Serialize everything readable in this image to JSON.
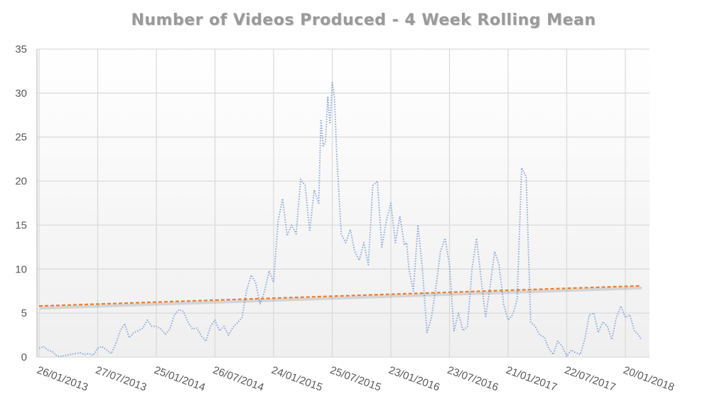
{
  "chart_data": {
    "type": "line",
    "title": "Number of Videos Produced - 4 Week Rolling Mean",
    "xlabel": "",
    "ylabel": "",
    "ylim": [
      0,
      35
    ],
    "yticks": [
      0,
      5,
      10,
      15,
      20,
      25,
      30,
      35
    ],
    "xlim": [
      "2013-01-26",
      "2018-01-20"
    ],
    "xtick_labels": [
      "26/01/2013",
      "27/07/2013",
      "25/01/2014",
      "26/07/2014",
      "24/01/2015",
      "25/07/2015",
      "23/01/2016",
      "23/07/2016",
      "21/01/2017",
      "22/07/2017",
      "20/01/2018"
    ],
    "xtick_dates": [
      "2013-01-26",
      "2013-07-27",
      "2014-01-25",
      "2014-07-26",
      "2015-01-24",
      "2015-07-25",
      "2016-01-23",
      "2016-07-23",
      "2017-01-21",
      "2017-07-22",
      "2018-01-20"
    ],
    "grid": true,
    "legend": "none",
    "series": [
      {
        "color": "#8EA9DB",
        "line_style": "dotted",
        "points": [
          [
            "2013-01-26",
            1.0
          ],
          [
            "2013-02-09",
            1.2
          ],
          [
            "2013-02-23",
            0.8
          ],
          [
            "2013-03-09",
            0.6
          ],
          [
            "2013-03-23",
            0.1
          ],
          [
            "2013-04-06",
            0.1
          ],
          [
            "2013-04-20",
            0.2
          ],
          [
            "2013-05-04",
            0.3
          ],
          [
            "2013-05-18",
            0.4
          ],
          [
            "2013-06-01",
            0.5
          ],
          [
            "2013-06-15",
            0.3
          ],
          [
            "2013-06-29",
            0.4
          ],
          [
            "2013-07-13",
            0.2
          ],
          [
            "2013-07-27",
            1.0
          ],
          [
            "2013-08-10",
            1.2
          ],
          [
            "2013-08-24",
            0.8
          ],
          [
            "2013-09-07",
            0.4
          ],
          [
            "2013-09-21",
            1.5
          ],
          [
            "2013-10-05",
            3.0
          ],
          [
            "2013-10-19",
            3.8
          ],
          [
            "2013-11-02",
            2.2
          ],
          [
            "2013-11-16",
            2.8
          ],
          [
            "2013-11-30",
            3.0
          ],
          [
            "2013-12-14",
            3.3
          ],
          [
            "2013-12-28",
            4.2
          ],
          [
            "2014-01-11",
            3.5
          ],
          [
            "2014-01-25",
            3.5
          ],
          [
            "2014-02-08",
            3.2
          ],
          [
            "2014-02-22",
            2.6
          ],
          [
            "2014-03-08",
            3.2
          ],
          [
            "2014-03-22",
            4.8
          ],
          [
            "2014-04-05",
            5.4
          ],
          [
            "2014-04-19",
            5.2
          ],
          [
            "2014-05-03",
            4.0
          ],
          [
            "2014-05-17",
            3.2
          ],
          [
            "2014-05-31",
            3.3
          ],
          [
            "2014-06-14",
            2.4
          ],
          [
            "2014-06-28",
            1.8
          ],
          [
            "2014-07-12",
            3.5
          ],
          [
            "2014-07-26",
            4.2
          ],
          [
            "2014-08-09",
            3.0
          ],
          [
            "2014-08-23",
            3.5
          ],
          [
            "2014-09-06",
            2.5
          ],
          [
            "2014-09-20",
            3.4
          ],
          [
            "2014-10-04",
            3.9
          ],
          [
            "2014-10-18",
            4.5
          ],
          [
            "2014-11-01",
            7.5
          ],
          [
            "2014-11-15",
            9.3
          ],
          [
            "2014-11-29",
            8.5
          ],
          [
            "2014-12-13",
            6.0
          ],
          [
            "2014-12-27",
            7.5
          ],
          [
            "2015-01-10",
            9.8
          ],
          [
            "2015-01-24",
            8.5
          ],
          [
            "2015-02-07",
            15.5
          ],
          [
            "2015-02-21",
            18.0
          ],
          [
            "2015-03-07",
            13.8
          ],
          [
            "2015-03-21",
            15.0
          ],
          [
            "2015-04-04",
            14.0
          ],
          [
            "2015-04-18",
            20.2
          ],
          [
            "2015-05-02",
            19.5
          ],
          [
            "2015-05-16",
            14.3
          ],
          [
            "2015-05-30",
            19.0
          ],
          [
            "2015-06-13",
            17.5
          ],
          [
            "2015-06-20",
            27.0
          ],
          [
            "2015-06-27",
            24.0
          ],
          [
            "2015-07-04",
            24.5
          ],
          [
            "2015-07-11",
            29.5
          ],
          [
            "2015-07-18",
            26.5
          ],
          [
            "2015-07-25",
            31.2
          ],
          [
            "2015-08-01",
            29.5
          ],
          [
            "2015-08-08",
            23.0
          ],
          [
            "2015-08-22",
            14.0
          ],
          [
            "2015-09-05",
            13.0
          ],
          [
            "2015-09-19",
            14.5
          ],
          [
            "2015-10-03",
            12.0
          ],
          [
            "2015-10-17",
            11.0
          ],
          [
            "2015-10-31",
            13.0
          ],
          [
            "2015-11-14",
            10.5
          ],
          [
            "2015-11-28",
            19.5
          ],
          [
            "2015-12-12",
            20.0
          ],
          [
            "2015-12-26",
            12.5
          ],
          [
            "2016-01-09",
            15.5
          ],
          [
            "2016-01-23",
            17.5
          ],
          [
            "2016-02-06",
            13.0
          ],
          [
            "2016-02-20",
            16.0
          ],
          [
            "2016-03-05",
            12.8
          ],
          [
            "2016-03-12",
            13.0
          ],
          [
            "2016-03-19",
            10.0
          ],
          [
            "2016-04-02",
            7.5
          ],
          [
            "2016-04-16",
            15.0
          ],
          [
            "2016-04-30",
            10.0
          ],
          [
            "2016-05-14",
            2.8
          ],
          [
            "2016-05-28",
            4.5
          ],
          [
            "2016-06-11",
            8.0
          ],
          [
            "2016-06-25",
            12.0
          ],
          [
            "2016-07-09",
            13.5
          ],
          [
            "2016-07-23",
            10.5
          ],
          [
            "2016-08-06",
            3.0
          ],
          [
            "2016-08-20",
            5.0
          ],
          [
            "2016-09-03",
            3.0
          ],
          [
            "2016-09-17",
            3.5
          ],
          [
            "2016-10-01",
            10.0
          ],
          [
            "2016-10-15",
            13.5
          ],
          [
            "2016-10-29",
            9.0
          ],
          [
            "2016-11-12",
            4.5
          ],
          [
            "2016-11-26",
            8.0
          ],
          [
            "2016-12-10",
            12.0
          ],
          [
            "2016-12-24",
            10.5
          ],
          [
            "2017-01-07",
            6.0
          ],
          [
            "2017-01-21",
            4.2
          ],
          [
            "2017-02-04",
            4.8
          ],
          [
            "2017-02-18",
            6.5
          ],
          [
            "2017-03-04",
            21.5
          ],
          [
            "2017-03-18",
            20.5
          ],
          [
            "2017-04-01",
            4.0
          ],
          [
            "2017-04-15",
            3.5
          ],
          [
            "2017-04-29",
            2.5
          ],
          [
            "2017-05-13",
            2.3
          ],
          [
            "2017-05-27",
            1.0
          ],
          [
            "2017-06-10",
            0.3
          ],
          [
            "2017-06-24",
            1.8
          ],
          [
            "2017-07-08",
            1.2
          ],
          [
            "2017-07-22",
            0.1
          ],
          [
            "2017-08-05",
            0.8
          ],
          [
            "2017-08-19",
            0.5
          ],
          [
            "2017-09-02",
            0.3
          ],
          [
            "2017-09-16",
            2.0
          ],
          [
            "2017-09-30",
            4.8
          ],
          [
            "2017-10-14",
            5.0
          ],
          [
            "2017-10-28",
            2.8
          ],
          [
            "2017-11-11",
            4.0
          ],
          [
            "2017-11-25",
            3.5
          ],
          [
            "2017-12-09",
            2.0
          ],
          [
            "2017-12-23",
            4.5
          ],
          [
            "2018-01-06",
            5.8
          ],
          [
            "2018-01-20",
            4.5
          ],
          [
            "2018-02-03",
            4.8
          ],
          [
            "2018-02-17",
            3.0
          ],
          [
            "2018-03-03",
            2.5
          ],
          [
            "2018-03-10",
            2.0
          ]
        ]
      },
      {
        "color": "#ED7D31",
        "line_style": "dashed",
        "kind": "linear trendline",
        "points": [
          [
            "2013-01-26",
            5.8
          ],
          [
            "2018-03-10",
            8.1
          ]
        ]
      }
    ]
  }
}
